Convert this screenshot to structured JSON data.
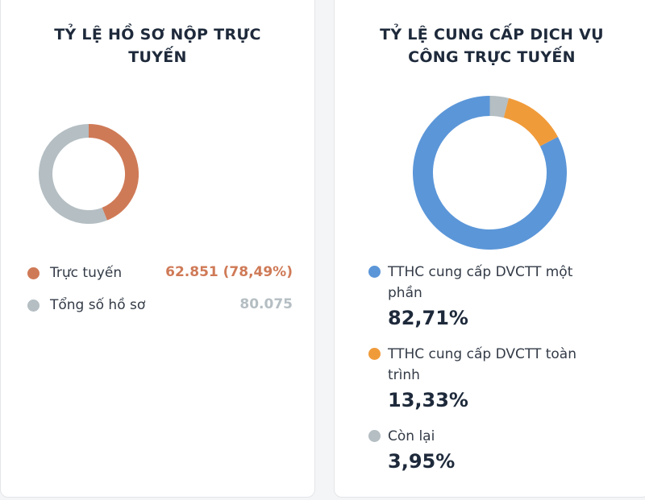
{
  "left_card": {
    "title": "TỶ LỆ HỒ SƠ NỘP TRỰC TUYẾN",
    "legend": [
      {
        "label": "Trực tuyến",
        "value": "62.851 (78,49%)",
        "color": "#cf7a57"
      },
      {
        "label": "Tổng số hồ sơ",
        "value": "80.075",
        "color": "#b4bec3"
      }
    ]
  },
  "right_card": {
    "title": "TỶ LỆ CUNG CẤP DỊCH VỤ CÔNG TRỰC TUYẾN",
    "legend": [
      {
        "label": "TTHC cung cấp DVCTT một phần",
        "pct": "82,71%",
        "color": "#5b96d8"
      },
      {
        "label": "TTHC cung cấp DVCTT toàn trình",
        "pct": "13,33%",
        "color": "#f09b3a"
      },
      {
        "label": "Còn lại",
        "pct": "3,95%",
        "color": "#b4bec3"
      }
    ]
  },
  "chart_data": [
    {
      "type": "pie",
      "title": "TỶ LỆ HỒ SƠ NỘP TRỰC TUYẾN",
      "categories": [
        "Trực tuyến",
        "Tổng số hồ sơ"
      ],
      "values": [
        62851,
        80075
      ],
      "colors": [
        "#cf7a57",
        "#b4bec3"
      ]
    },
    {
      "type": "pie",
      "title": "TỶ LỆ CUNG CẤP DỊCH VỤ CÔNG TRỰC TUYẾN",
      "categories": [
        "TTHC cung cấp DVCTT một phần",
        "TTHC cung cấp DVCTT toàn trình",
        "Còn lại"
      ],
      "values": [
        82.71,
        13.33,
        3.95
      ],
      "colors": [
        "#5b96d8",
        "#f09b3a",
        "#b4bec3"
      ]
    }
  ]
}
